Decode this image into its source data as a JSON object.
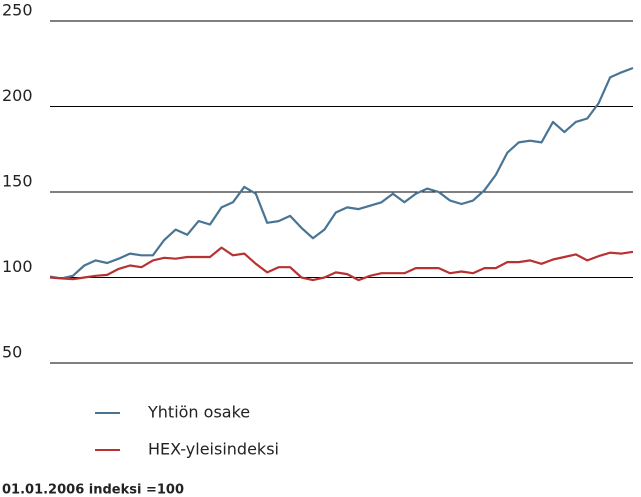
{
  "chart_data": {
    "type": "line",
    "series": [
      {
        "name": "Yhtiön osake",
        "color": "#4a7494",
        "values": [
          100.5,
          99.5,
          101,
          107,
          110,
          108.5,
          111,
          114,
          113,
          113,
          122,
          128,
          125,
          133,
          131,
          141,
          144,
          153,
          149,
          132,
          133,
          136,
          129,
          123,
          128,
          138,
          141,
          140,
          142,
          144,
          149,
          144,
          149,
          152,
          150,
          145,
          143,
          145,
          151,
          160,
          173,
          179,
          180,
          179,
          191,
          185,
          191,
          193,
          202,
          217,
          220,
          222.5
        ]
      },
      {
        "name": "HEX-yleisindeksi",
        "color": "#b83232",
        "values": [
          100,
          99.5,
          99,
          100,
          101,
          101.5,
          105,
          107,
          106,
          110,
          111.5,
          111,
          112,
          112,
          112,
          117.5,
          113,
          114,
          108,
          103,
          106,
          106,
          100,
          98.5,
          100,
          103,
          102,
          98.5,
          101,
          102.5,
          102.5,
          102.5,
          105.5,
          105.5,
          105.5,
          102.5,
          103.5,
          102.5,
          105.5,
          105.5,
          109,
          109,
          110,
          108,
          110.5,
          112,
          113.5,
          110,
          112.5,
          114.5,
          114,
          115
        ]
      }
    ],
    "ylim": [
      50,
      250
    ],
    "yticks": [
      50,
      100,
      150,
      200,
      250
    ],
    "grid": true,
    "note": "01.01.2006 indeksi =100"
  }
}
